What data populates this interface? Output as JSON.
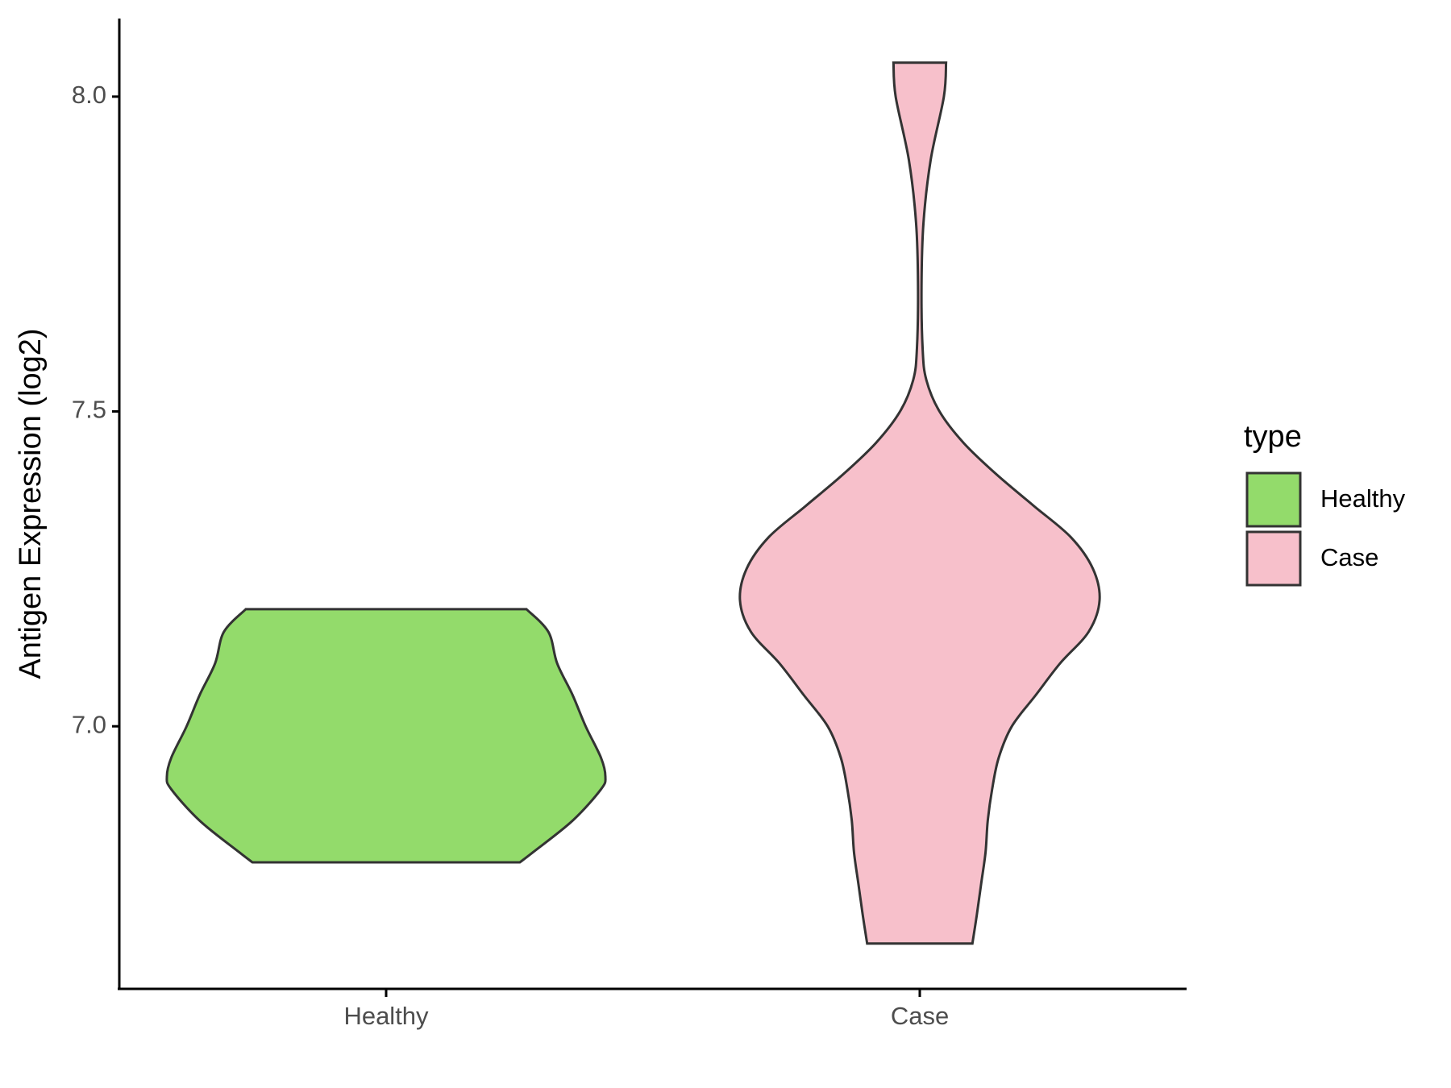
{
  "chart_data": {
    "type": "violin",
    "ylabel": "Antigen Expression (log2)",
    "categories": [
      "Healthy",
      "Case"
    ],
    "ylim": [
      6.583,
      8.124
    ],
    "yticks": [
      {
        "value": 7.0,
        "label": "7.0"
      },
      7.5,
      {
        "value": 8.0,
        "label": "8.0"
      }
    ],
    "legend_title": "type",
    "series": [
      {
        "name": "Healthy",
        "color": "#93db6b",
        "y": [
          7.186,
          7.15,
          7.1,
          7.05,
          7.0,
          6.95,
          6.92,
          6.9,
          6.85,
          6.8,
          6.784
        ],
        "density": [
          0.64,
          0.74,
          0.78,
          0.85,
          0.91,
          0.98,
          1.0,
          0.98,
          0.85,
          0.67,
          0.61
        ]
      },
      {
        "name": "Case",
        "color": "#f7c0cb",
        "y": [
          8.054,
          8.0,
          7.9,
          7.8,
          7.7,
          7.6,
          7.55,
          7.5,
          7.45,
          7.4,
          7.35,
          7.3,
          7.25,
          7.2,
          7.15,
          7.1,
          7.05,
          7.0,
          6.95,
          6.9,
          6.85,
          6.8,
          6.75,
          6.7,
          6.655
        ],
        "density": [
          0.12,
          0.11,
          0.05,
          0.017,
          0.008,
          0.013,
          0.03,
          0.09,
          0.2,
          0.35,
          0.52,
          0.69,
          0.79,
          0.82,
          0.77,
          0.64,
          0.53,
          0.42,
          0.36,
          0.33,
          0.31,
          0.3,
          0.28,
          0.26,
          0.24
        ]
      }
    ]
  }
}
